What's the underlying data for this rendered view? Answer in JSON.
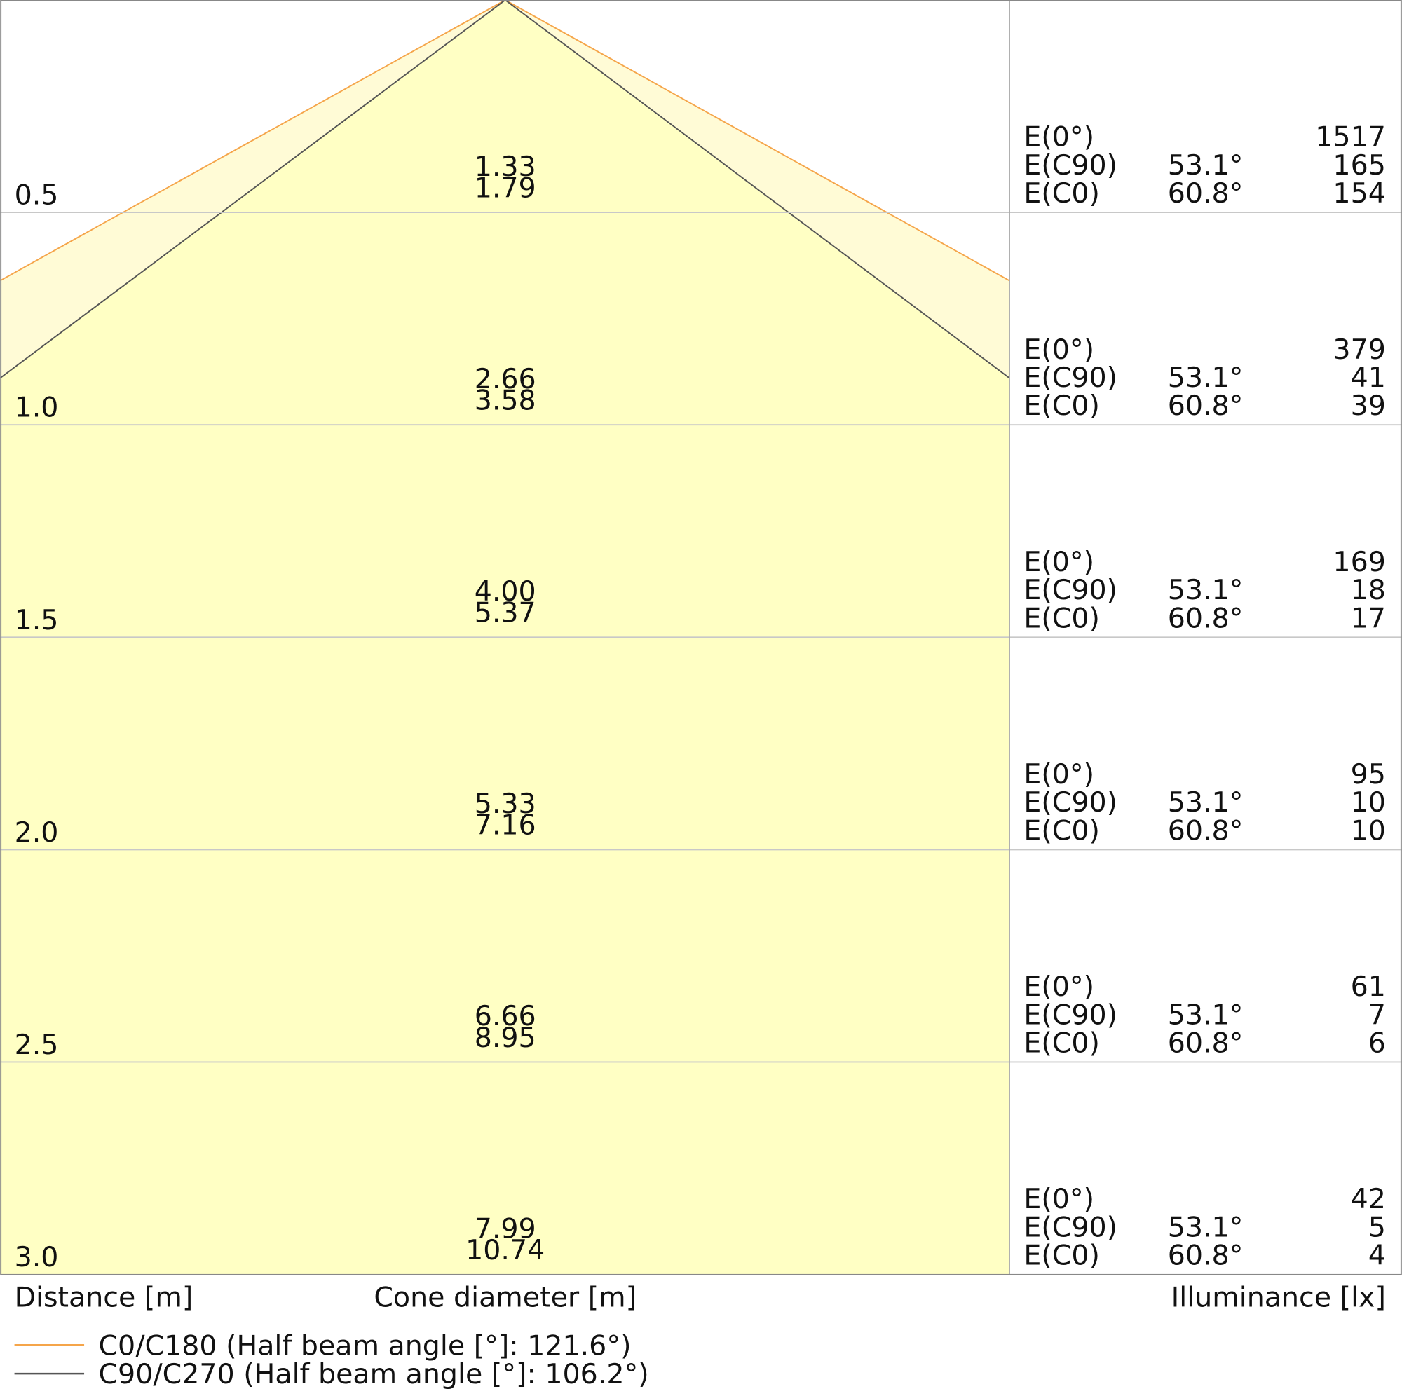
{
  "rows": [
    {
      "distance": "0.5",
      "diameters": [
        "1.33",
        "1.79"
      ],
      "entries": [
        {
          "label": "E(0°)",
          "value": "1517"
        },
        {
          "label": "E(C90)",
          "angle": "53.1°",
          "value": "165"
        },
        {
          "label": "E(C0)",
          "angle": "60.8°",
          "value": "154"
        }
      ]
    },
    {
      "distance": "1.0",
      "diameters": [
        "2.66",
        "3.58"
      ],
      "entries": [
        {
          "label": "E(0°)",
          "value": "379"
        },
        {
          "label": "E(C90)",
          "angle": "53.1°",
          "value": "41"
        },
        {
          "label": "E(C0)",
          "angle": "60.8°",
          "value": "39"
        }
      ]
    },
    {
      "distance": "1.5",
      "diameters": [
        "4.00",
        "5.37"
      ],
      "entries": [
        {
          "label": "E(0°)",
          "value": "169"
        },
        {
          "label": "E(C90)",
          "angle": "53.1°",
          "value": "18"
        },
        {
          "label": "E(C0)",
          "angle": "60.8°",
          "value": "17"
        }
      ]
    },
    {
      "distance": "2.0",
      "diameters": [
        "5.33",
        "7.16"
      ],
      "entries": [
        {
          "label": "E(0°)",
          "value": "95"
        },
        {
          "label": "E(C90)",
          "angle": "53.1°",
          "value": "10"
        },
        {
          "label": "E(C0)",
          "angle": "60.8°",
          "value": "10"
        }
      ]
    },
    {
      "distance": "2.5",
      "diameters": [
        "6.66",
        "8.95"
      ],
      "entries": [
        {
          "label": "E(0°)",
          "value": "61"
        },
        {
          "label": "E(C90)",
          "angle": "53.1°",
          "value": "7"
        },
        {
          "label": "E(C0)",
          "angle": "60.8°",
          "value": "6"
        }
      ]
    },
    {
      "distance": "3.0",
      "diameters": [
        "7.99",
        "10.74"
      ],
      "entries": [
        {
          "label": "E(0°)",
          "value": "42"
        },
        {
          "label": "E(C90)",
          "angle": "53.1°",
          "value": "5"
        },
        {
          "label": "E(C0)",
          "angle": "60.8°",
          "value": "4"
        }
      ]
    }
  ],
  "axis_labels": {
    "distance": "Distance [m]",
    "diameter": "Cone diameter [m]",
    "illuminance": "Illuminance [lx]"
  },
  "legend": [
    "C0/C180 (Half beam angle [°]: 121.6°)",
    "C90/C270 (Half beam angle [°]: 106.2°)"
  ]
}
